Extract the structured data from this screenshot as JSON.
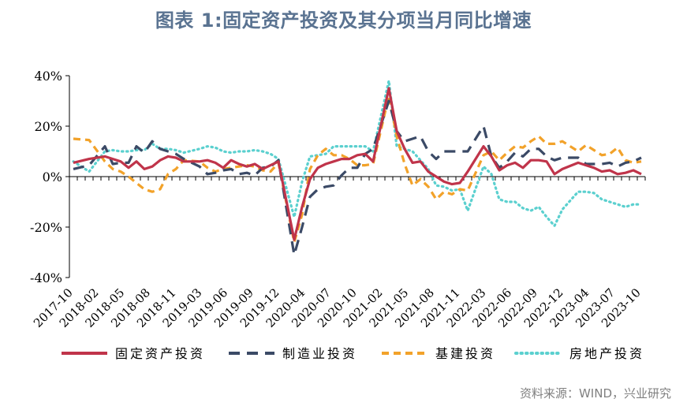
{
  "chart_data": {
    "type": "line",
    "title": "图表 1:固定资产投资及其分项当月同比增速",
    "source": "资料来源：WIND，兴业研究",
    "xlabel": "",
    "ylabel": "",
    "ylim": [
      -40,
      40
    ],
    "yticks": [
      -40,
      -20,
      0,
      20,
      40
    ],
    "ytick_labels": [
      "-40%",
      "-20%",
      "0%",
      "20%",
      "40%"
    ],
    "xlim": [
      "2017-10",
      "2023-10"
    ],
    "xtick_labels": [
      "2017-10",
      "2018-02",
      "2018-05",
      "2018-08",
      "2018-11",
      "2019-03",
      "2019-06",
      "2019-09",
      "2019-12",
      "2020-04",
      "2020-07",
      "2020-10",
      "2021-02",
      "2021-05",
      "2021-08",
      "2021-11",
      "2022-03",
      "2022-06",
      "2022-09",
      "2022-12",
      "2023-04",
      "2023-07",
      "2023-10"
    ],
    "grid": false,
    "legend_position": "bottom",
    "series": [
      {
        "name": "固定资产投资",
        "color": "#c0344a",
        "dash": "solid",
        "x": [
          "2017-10",
          "2017-12",
          "2018-02",
          "2018-03",
          "2018-04",
          "2018-05",
          "2018-06",
          "2018-07",
          "2018-08",
          "2018-09",
          "2018-10",
          "2018-11",
          "2018-12",
          "2019-02",
          "2019-03",
          "2019-04",
          "2019-05",
          "2019-06",
          "2019-07",
          "2019-08",
          "2019-09",
          "2019-10",
          "2019-11",
          "2019-12",
          "2020-02",
          "2020-03",
          "2020-04",
          "2020-05",
          "2020-06",
          "2020-07",
          "2020-08",
          "2020-09",
          "2020-10",
          "2020-11",
          "2020-12",
          "2021-02",
          "2021-03",
          "2021-04",
          "2021-05",
          "2021-06",
          "2021-07",
          "2021-08",
          "2021-09",
          "2021-10",
          "2021-11",
          "2021-12",
          "2022-02",
          "2022-03",
          "2022-04",
          "2022-05",
          "2022-06",
          "2022-07",
          "2022-08",
          "2022-09",
          "2022-10",
          "2022-11",
          "2022-12",
          "2023-02",
          "2023-03",
          "2023-04",
          "2023-05",
          "2023-06",
          "2023-07",
          "2023-08",
          "2023-09",
          "2023-10"
        ],
        "values": [
          5.5,
          7.0,
          8.0,
          7.0,
          6.0,
          3.5,
          6.0,
          3.0,
          4.0,
          6.5,
          8.0,
          7.5,
          6.0,
          6.0,
          6.5,
          5.5,
          3.5,
          6.5,
          5.0,
          4.0,
          5.0,
          3.0,
          4.5,
          6.0,
          -25.0,
          -12.0,
          -1.0,
          3.5,
          5.0,
          6.0,
          7.0,
          7.0,
          8.5,
          9.0,
          6.0,
          35.0,
          18.0,
          11.0,
          5.5,
          6.0,
          2.0,
          0.0,
          -2.0,
          -3.0,
          -2.5,
          2.0,
          12.0,
          8.0,
          2.5,
          4.5,
          5.5,
          3.5,
          6.5,
          6.5,
          6.0,
          1.0,
          3.0,
          5.5,
          4.5,
          3.5,
          2.0,
          2.5,
          1.0,
          1.5,
          2.5,
          1.0
        ]
      },
      {
        "name": "制造业投资",
        "color": "#3b4a66",
        "dash": "long-dash",
        "x": [
          "2017-10",
          "2017-12",
          "2018-02",
          "2018-03",
          "2018-04",
          "2018-05",
          "2018-06",
          "2018-07",
          "2018-08",
          "2018-09",
          "2018-10",
          "2018-11",
          "2018-12",
          "2019-02",
          "2019-03",
          "2019-04",
          "2019-05",
          "2019-06",
          "2019-07",
          "2019-08",
          "2019-09",
          "2019-10",
          "2019-11",
          "2019-12",
          "2020-02",
          "2020-03",
          "2020-04",
          "2020-05",
          "2020-06",
          "2020-07",
          "2020-08",
          "2020-09",
          "2020-10",
          "2020-11",
          "2020-12",
          "2021-02",
          "2021-03",
          "2021-04",
          "2021-05",
          "2021-06",
          "2021-07",
          "2021-08",
          "2021-09",
          "2021-10",
          "2021-11",
          "2021-12",
          "2022-02",
          "2022-03",
          "2022-04",
          "2022-05",
          "2022-06",
          "2022-07",
          "2022-08",
          "2022-09",
          "2022-10",
          "2022-11",
          "2022-12",
          "2023-02",
          "2023-03",
          "2023-04",
          "2023-05",
          "2023-06",
          "2023-07",
          "2023-08",
          "2023-09",
          "2023-10"
        ],
        "values": [
          3.0,
          4.5,
          12.0,
          5.0,
          5.5,
          5.5,
          12.0,
          9.5,
          14.0,
          11.0,
          10.0,
          9.0,
          7.0,
          4.0,
          1.0,
          1.5,
          2.5,
          3.0,
          1.0,
          1.5,
          0.5,
          3.5,
          4.0,
          6.5,
          -31.0,
          -20.0,
          -8.0,
          -5.0,
          -4.0,
          -3.5,
          0.5,
          3.5,
          3.5,
          9.0,
          11.0,
          30.0,
          18.0,
          14.0,
          15.0,
          16.0,
          10.0,
          7.0,
          10.0,
          10.0,
          10.0,
          10.0,
          20.0,
          8.0,
          3.5,
          6.0,
          9.5,
          8.0,
          11.0,
          11.0,
          8.0,
          6.5,
          7.5,
          7.5,
          5.0,
          5.0,
          5.0,
          5.5,
          4.0,
          5.5,
          6.0,
          7.5
        ]
      },
      {
        "name": "基建投资",
        "color": "#f2a22a",
        "dash": "dash",
        "x": [
          "2017-10",
          "2017-12",
          "2018-02",
          "2018-03",
          "2018-04",
          "2018-05",
          "2018-06",
          "2018-07",
          "2018-08",
          "2018-09",
          "2018-10",
          "2018-11",
          "2018-12",
          "2019-02",
          "2019-03",
          "2019-04",
          "2019-05",
          "2019-06",
          "2019-07",
          "2019-08",
          "2019-09",
          "2019-10",
          "2019-11",
          "2019-12",
          "2020-02",
          "2020-03",
          "2020-04",
          "2020-05",
          "2020-06",
          "2020-07",
          "2020-08",
          "2020-09",
          "2020-10",
          "2020-11",
          "2020-12",
          "2021-02",
          "2021-03",
          "2021-04",
          "2021-05",
          "2021-06",
          "2021-07",
          "2021-08",
          "2021-09",
          "2021-10",
          "2021-11",
          "2021-12",
          "2022-02",
          "2022-03",
          "2022-04",
          "2022-05",
          "2022-06",
          "2022-07",
          "2022-08",
          "2022-09",
          "2022-10",
          "2022-11",
          "2022-12",
          "2023-02",
          "2023-03",
          "2023-04",
          "2023-05",
          "2023-06",
          "2023-07",
          "2023-08",
          "2023-09",
          "2023-10"
        ],
        "values": [
          15.0,
          14.5,
          6.0,
          3.0,
          2.0,
          0.0,
          -2.5,
          -5.0,
          -6.0,
          -5.0,
          1.0,
          3.0,
          6.5,
          6.0,
          3.5,
          2.0,
          3.0,
          3.5,
          4.0,
          4.5,
          4.0,
          2.5,
          2.0,
          5.5,
          -26.0,
          -15.0,
          3.0,
          8.5,
          11.0,
          8.5,
          8.5,
          7.0,
          4.5,
          4.5,
          5.0,
          32.0,
          16.0,
          5.0,
          -3.5,
          -1.0,
          -4.0,
          -9.0,
          -6.0,
          -7.0,
          -5.0,
          -5.5,
          8.5,
          10.0,
          6.5,
          9.5,
          12.0,
          11.5,
          14.0,
          16.0,
          13.0,
          13.0,
          14.0,
          10.0,
          12.5,
          10.5,
          8.5,
          9.0,
          11.5,
          6.5,
          5.5,
          6.0
        ]
      },
      {
        "name": "房地产投资",
        "color": "#5bd0cf",
        "dash": "dot",
        "x": [
          "2017-10",
          "2017-12",
          "2018-02",
          "2018-03",
          "2018-04",
          "2018-05",
          "2018-06",
          "2018-07",
          "2018-08",
          "2018-09",
          "2018-10",
          "2018-11",
          "2018-12",
          "2019-02",
          "2019-03",
          "2019-04",
          "2019-05",
          "2019-06",
          "2019-07",
          "2019-08",
          "2019-09",
          "2019-10",
          "2019-11",
          "2019-12",
          "2020-02",
          "2020-03",
          "2020-04",
          "2020-05",
          "2020-06",
          "2020-07",
          "2020-08",
          "2020-09",
          "2020-10",
          "2020-11",
          "2020-12",
          "2021-02",
          "2021-03",
          "2021-04",
          "2021-05",
          "2021-06",
          "2021-07",
          "2021-08",
          "2021-09",
          "2021-10",
          "2021-11",
          "2021-12",
          "2022-02",
          "2022-03",
          "2022-04",
          "2022-05",
          "2022-06",
          "2022-07",
          "2022-08",
          "2022-09",
          "2022-10",
          "2022-11",
          "2022-12",
          "2023-02",
          "2023-03",
          "2023-04",
          "2023-05",
          "2023-06",
          "2023-07",
          "2023-08",
          "2023-09",
          "2023-10"
        ],
        "values": [
          6.0,
          2.0,
          10.0,
          10.5,
          10.0,
          10.0,
          10.5,
          10.5,
          13.0,
          11.0,
          11.0,
          10.5,
          9.5,
          11.0,
          12.0,
          11.5,
          10.0,
          9.5,
          10.0,
          10.0,
          10.5,
          10.0,
          9.0,
          7.0,
          -16.0,
          -2.0,
          8.0,
          8.5,
          9.0,
          12.0,
          12.0,
          12.0,
          12.0,
          12.0,
          10.0,
          38.0,
          12.0,
          11.0,
          10.0,
          6.5,
          3.0,
          -3.5,
          -4.0,
          -5.5,
          -5.0,
          -13.5,
          4.0,
          1.0,
          -9.0,
          -10.0,
          -10.0,
          -12.5,
          -13.5,
          -12.0,
          -16.0,
          -19.5,
          -13.0,
          -6.0,
          -6.0,
          -6.5,
          -9.0,
          -10.0,
          -11.0,
          -12.0,
          -11.0,
          -11.0
        ]
      }
    ]
  }
}
